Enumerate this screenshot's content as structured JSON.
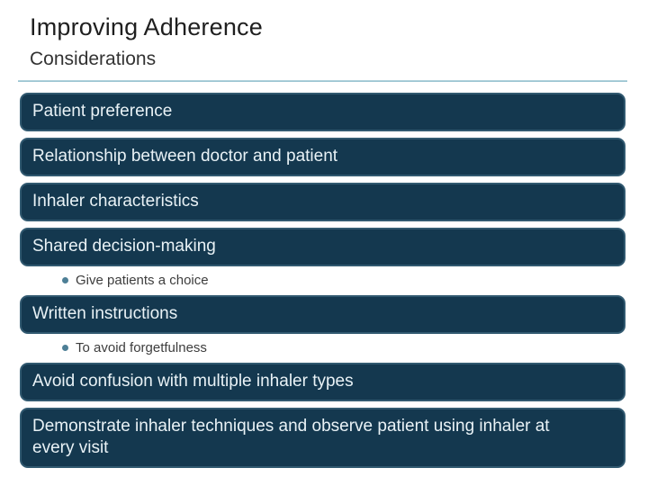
{
  "slide": {
    "title": "Improving Adherence",
    "subtitle": "Considerations"
  },
  "rows": [
    {
      "type": "bar",
      "label": "Patient preference"
    },
    {
      "type": "bar",
      "label": "Relationship between doctor and patient"
    },
    {
      "type": "bar",
      "label": "Inhaler characteristics"
    },
    {
      "type": "bar",
      "label": "Shared decision-making"
    },
    {
      "type": "bullet",
      "label": "Give patients a choice"
    },
    {
      "type": "bar",
      "label": "Written instructions"
    },
    {
      "type": "bullet",
      "label": "To avoid forgetfulness"
    },
    {
      "type": "bar",
      "label": "Avoid confusion with multiple inhaler types"
    },
    {
      "type": "bar",
      "label": "Demonstrate inhaler techniques and observe patient using inhaler at every visit"
    }
  ],
  "colors": {
    "background": "#FFFFFF",
    "title_text": "#1F1F1F",
    "subtitle_text": "#333333",
    "rule_line": "#9CC6D4",
    "bar_fill": "#14384F",
    "bar_edge": "#5E8FA8",
    "bar_text": "#E9F2F6",
    "bullet_dot": "#4D7F96",
    "bullet_text": "#3D3D3D"
  }
}
